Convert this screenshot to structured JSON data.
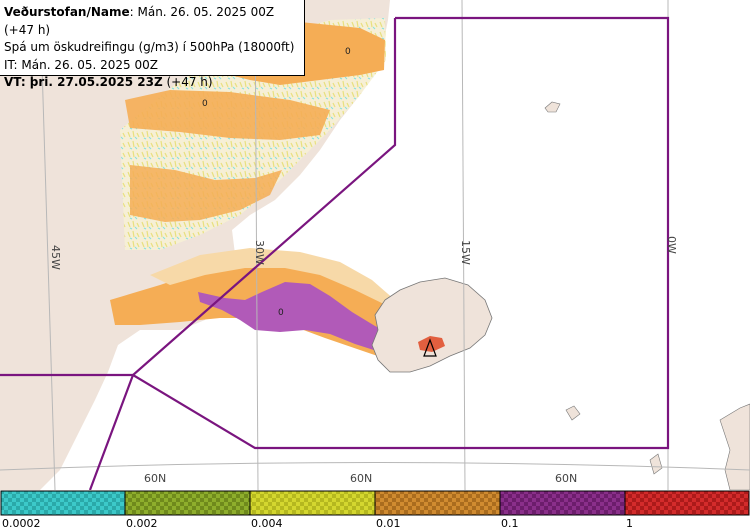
{
  "header": {
    "line1_bold": "Veðurstofan/Name",
    "line1_rest": ": Mán. 26. 05. 2025 00Z (+47 h)",
    "line2": "Spá um öskudreifingu (g/m3) í 500hPa (18000ft)",
    "line3": "IT: Mán. 26. 05. 2025 00Z",
    "line4_bold": "VT:",
    "line4_rest_bold": " þri. 27.05.2025 23Z",
    "line4_rest": " (+47 h)"
  },
  "map": {
    "meridian_labels": [
      "45W",
      "30W",
      "15W",
      "0W"
    ],
    "parallel_labels": [
      "60N",
      "60N",
      "60N"
    ],
    "contour_labels": [
      "0",
      "0",
      "0"
    ],
    "colors": {
      "land": "#efe3da",
      "ash_light": "#f7d9a8",
      "ash_orange": "#f5ad55",
      "ash_purple": "#b15ab8",
      "ash_red": "#e0502e",
      "boundary": "#7a157f",
      "grid": "#b8b8b8"
    }
  },
  "legend": {
    "labels": [
      "0.0002",
      "0.002",
      "0.004",
      "0.01",
      "0.1",
      "1"
    ],
    "colors": [
      "#3cc9c9",
      "#8eae2c",
      "#d4d72f",
      "#d08b30",
      "#8a2f8a",
      "#d32b2b"
    ]
  }
}
